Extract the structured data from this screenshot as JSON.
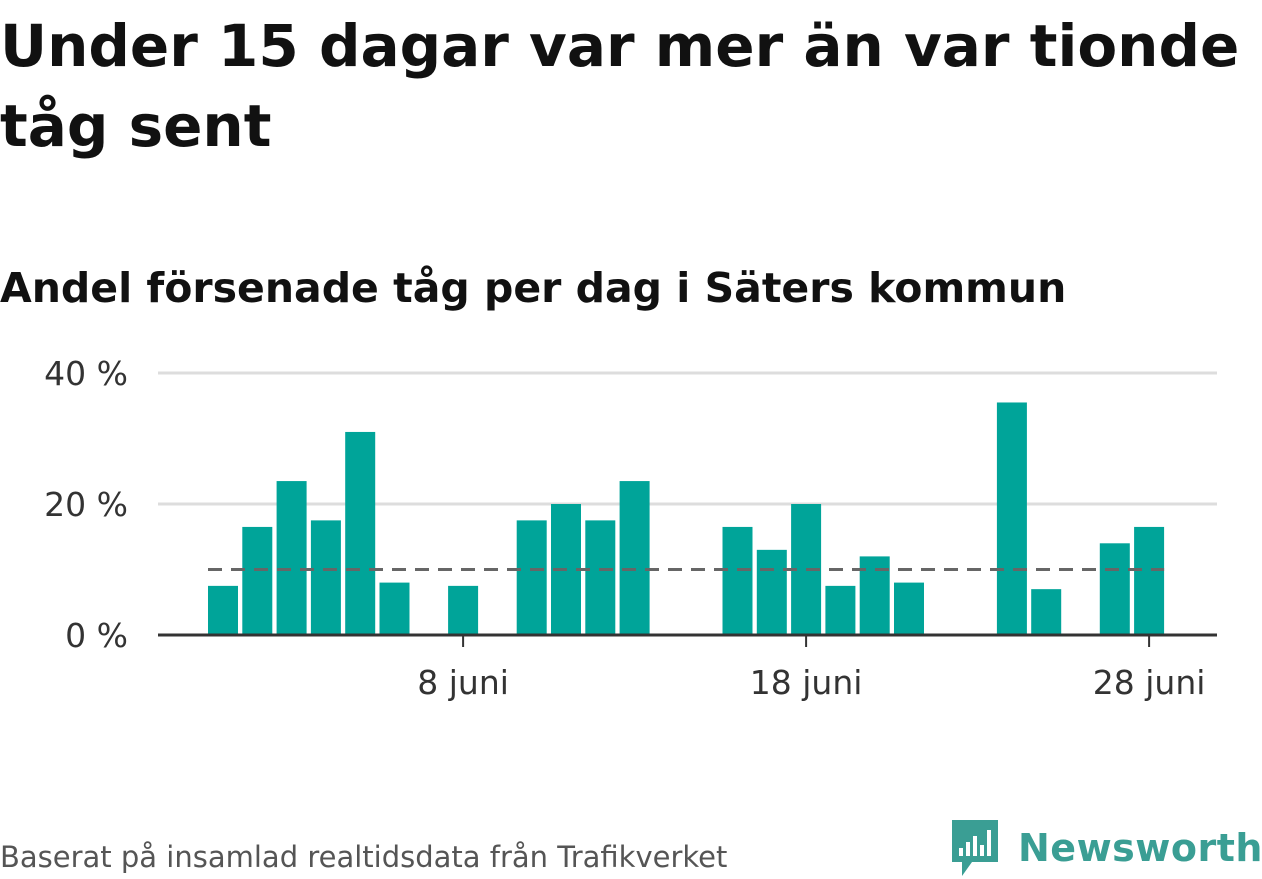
{
  "title": "Under 15 dagar var mer än var tionde tåg sent",
  "subtitle": "Andel försenade tåg per dag i Säters kommun",
  "footer": "Baserat på insamlad realtidsdata från Trafikverket",
  "brand": "Newsworthy",
  "colors": {
    "bar": "#00a499",
    "grid": "#dddddd",
    "reference": "#666666",
    "brand": "#3a9e94"
  },
  "chart_data": {
    "type": "bar",
    "x": [
      1,
      2,
      3,
      4,
      5,
      6,
      7,
      8,
      9,
      10,
      11,
      12,
      13,
      14,
      15,
      16,
      17,
      18,
      19,
      20,
      21,
      22,
      23,
      24,
      25,
      26,
      27,
      28,
      29
    ],
    "values": [
      7.5,
      16.5,
      23.5,
      17.5,
      31,
      8,
      0,
      7.5,
      0,
      17.5,
      20,
      17.5,
      23.5,
      0,
      0,
      16.5,
      13,
      20,
      7.5,
      12,
      8,
      0,
      0,
      35.5,
      7,
      0,
      14,
      16.5,
      0
    ],
    "x_ticks": [
      {
        "x": 8,
        "label": "8 juni"
      },
      {
        "x": 18,
        "label": "18 juni"
      },
      {
        "x": 28,
        "label": "28 juni"
      }
    ],
    "y_ticks": [
      {
        "value": 0,
        "label": "0 %"
      },
      {
        "value": 20,
        "label": "20 %"
      },
      {
        "value": 40,
        "label": "40 %"
      }
    ],
    "ylim": [
      0,
      40
    ],
    "reference_line": 10,
    "grid": true
  }
}
